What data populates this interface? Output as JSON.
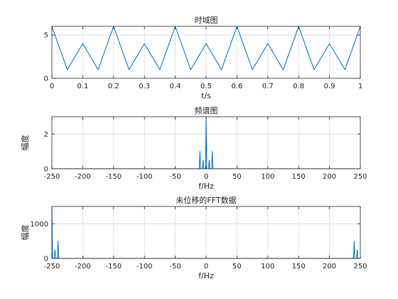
{
  "figure": {
    "background": "#ffffff"
  },
  "style": {
    "line_color": "#0072bd",
    "grid_color": "#dcdcdc",
    "axis_color": "#262626"
  },
  "chart_data": [
    {
      "type": "line",
      "title": "时域图",
      "xlabel": "t/s",
      "ylabel": "",
      "xlim": [
        0,
        1
      ],
      "ylim": [
        0,
        6
      ],
      "xticks": [
        0,
        0.1,
        0.2,
        0.3,
        0.4,
        0.5,
        0.6,
        0.7,
        0.8,
        0.9,
        1
      ],
      "xtick_labels": [
        "0",
        "0.1",
        "0.2",
        "0.3",
        "0.4",
        "0.5",
        "0.6",
        "0.7",
        "0.8",
        "0.9",
        "1"
      ],
      "yticks": [
        0,
        5
      ],
      "ytick_labels": [
        "0",
        "5"
      ],
      "grid": true,
      "series": [
        {
          "x": [
            0,
            0.025,
            0.05,
            0.075,
            0.1,
            0.125,
            0.15,
            0.175,
            0.2,
            0.225,
            0.25,
            0.275,
            0.3,
            0.325,
            0.35,
            0.375,
            0.4,
            0.425,
            0.45,
            0.475,
            0.5,
            0.525,
            0.55,
            0.575,
            0.6,
            0.625,
            0.65,
            0.675,
            0.7,
            0.725,
            0.75,
            0.775,
            0.8,
            0.825,
            0.85,
            0.875,
            0.9,
            0.925,
            0.95,
            0.975,
            1
          ],
          "y": [
            6,
            3.5,
            1,
            2.5,
            4,
            2.5,
            1,
            3.5,
            6,
            3.5,
            1,
            2.5,
            4,
            2.5,
            1,
            3.5,
            6,
            3.5,
            1,
            2.5,
            4,
            2.5,
            1,
            3.5,
            6,
            3.5,
            1,
            2.5,
            4,
            2.5,
            1,
            3.5,
            6,
            3.5,
            1,
            2.5,
            4,
            2.5,
            1,
            3.5,
            6
          ]
        }
      ]
    },
    {
      "type": "line",
      "title": "频谱图",
      "xlabel": "f/Hz",
      "ylabel": "幅度",
      "xlim": [
        -250,
        250
      ],
      "ylim": [
        0,
        3
      ],
      "xticks": [
        -250,
        -200,
        -150,
        -100,
        -50,
        0,
        50,
        100,
        150,
        200,
        250
      ],
      "xtick_labels": [
        "-250",
        "-200",
        "-150",
        "-100",
        "-50",
        "0",
        "50",
        "100",
        "150",
        "200",
        "250"
      ],
      "yticks": [
        0,
        2
      ],
      "ytick_labels": [
        "0",
        "2"
      ],
      "grid": true,
      "series": [
        {
          "x": [
            -250,
            -11,
            -10,
            -9,
            -6,
            -5,
            -4,
            -1,
            0,
            1,
            4,
            5,
            6,
            9,
            10,
            11,
            250
          ],
          "y": [
            0,
            0,
            1,
            0,
            0,
            0.5,
            0,
            0,
            3,
            0,
            0,
            0.5,
            0,
            0,
            1,
            0,
            0
          ]
        }
      ]
    },
    {
      "type": "line",
      "title": "未位移的FFT数据",
      "xlabel": "f/Hz",
      "ylabel": "幅度",
      "xlim": [
        -250,
        250
      ],
      "ylim": [
        0,
        1500
      ],
      "xticks": [
        -250,
        -200,
        -150,
        -100,
        -50,
        0,
        50,
        100,
        150,
        200,
        250
      ],
      "xtick_labels": [
        "-250",
        "-200",
        "-150",
        "-100",
        "-50",
        "0",
        "50",
        "100",
        "150",
        "200",
        "250"
      ],
      "yticks": [
        0,
        1000
      ],
      "ytick_labels": [
        "0",
        "1000"
      ],
      "grid": true,
      "series": [
        {
          "x": [
            -250,
            -249,
            -246,
            -245,
            -244,
            -241,
            -240,
            -239,
            239,
            240,
            241,
            244,
            245,
            246,
            249,
            250
          ],
          "y": [
            1500,
            0,
            0,
            250,
            0,
            0,
            500,
            0,
            0,
            500,
            0,
            0,
            250,
            0,
            0,
            0
          ]
        }
      ]
    }
  ]
}
